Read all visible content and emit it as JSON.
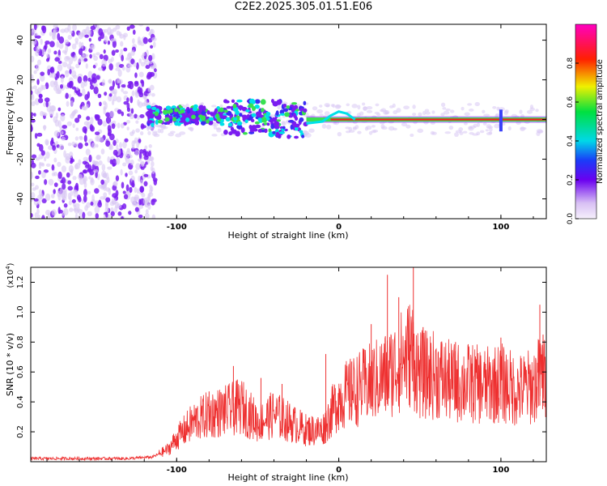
{
  "chart_data": [
    {
      "type": "heatmap",
      "title": "C2E2.2025.305.01.51.E06",
      "xlabel": "Height of straight line (km)",
      "ylabel": "Frequency (Hz)",
      "xlim": [
        -190,
        128
      ],
      "ylim": [
        -50,
        48
      ],
      "xticks": [
        -100,
        0,
        100
      ],
      "xtick_labels": [
        "-100",
        "0",
        "100"
      ],
      "yticks": [
        -40,
        -20,
        0,
        20,
        40
      ],
      "ytick_labels": [
        "-40",
        "-20",
        "0",
        "20",
        "40"
      ],
      "colorbar": {
        "label": "Normalized spectral amplitude",
        "range": [
          0,
          1
        ],
        "ticks": [
          0.0,
          0.2,
          0.4,
          0.6,
          0.8
        ],
        "tick_labels": [
          "0.0",
          "0.2",
          "0.4",
          "0.6",
          "0.8"
        ]
      },
      "regions": [
        {
          "name": "scattered noise",
          "x_range": [
            -190,
            -113
          ],
          "f_range": [
            -50,
            48
          ],
          "amplitude": 0.1
        },
        {
          "name": "broad band",
          "x_range": [
            -118,
            -20
          ],
          "f_range": [
            -12,
            16
          ],
          "amplitude": 0.3
        },
        {
          "name": "narrow line",
          "x_range": [
            -20,
            128
          ],
          "f_center": 0,
          "amplitude": 0.85
        }
      ],
      "colors": {
        "low": "#d8c8f4",
        "mid": "#7a1cf0",
        "cyan": "#00e0e8",
        "green": "#38e050",
        "red": "#ee2020"
      }
    },
    {
      "type": "line",
      "xlabel": "Height of straight line (km)",
      "ylabel": "SNR (10 * v/v)",
      "scale_label_prefix": "(x10",
      "scale_label_exp": "4",
      "scale_label_suffix": ")",
      "xlim": [
        -190,
        128
      ],
      "ylim": [
        0,
        1.3
      ],
      "xticks": [
        -100,
        0,
        100
      ],
      "xtick_labels": [
        "-100",
        "0",
        "100"
      ],
      "yticks": [
        0.2,
        0.4,
        0.6,
        0.8,
        1.0,
        1.2
      ],
      "ytick_labels": [
        "0.2",
        "0.4",
        "0.6",
        "0.8",
        "1.0",
        "1.2"
      ],
      "color": "#ee3030",
      "series": [
        {
          "name": "SNR",
          "x": [
            -190,
            -170,
            -150,
            -130,
            -115,
            -105,
            -100,
            -90,
            -80,
            -70,
            -60,
            -50,
            -40,
            -30,
            -20,
            -10,
            0,
            10,
            20,
            30,
            40,
            45,
            50,
            60,
            70,
            80,
            90,
            100,
            110,
            120,
            125,
            128
          ],
          "y": [
            0.02,
            0.02,
            0.02,
            0.02,
            0.03,
            0.08,
            0.15,
            0.25,
            0.3,
            0.32,
            0.35,
            0.25,
            0.3,
            0.25,
            0.2,
            0.2,
            0.4,
            0.45,
            0.5,
            0.55,
            0.65,
            0.7,
            0.55,
            0.55,
            0.5,
            0.5,
            0.48,
            0.5,
            0.45,
            0.48,
            0.55,
            0.5
          ],
          "peaks": [
            {
              "x": -80,
              "y": 0.47
            },
            {
              "x": -65,
              "y": 0.64
            },
            {
              "x": -48,
              "y": 0.56
            },
            {
              "x": -35,
              "y": 0.52
            },
            {
              "x": -8,
              "y": 0.72
            },
            {
              "x": 8,
              "y": 0.67
            },
            {
              "x": 20,
              "y": 0.92
            },
            {
              "x": 30,
              "y": 1.25
            },
            {
              "x": 37,
              "y": 1.1
            },
            {
              "x": 46,
              "y": 1.3
            },
            {
              "x": 52,
              "y": 0.9
            },
            {
              "x": 72,
              "y": 0.8
            },
            {
              "x": 100,
              "y": 0.83
            },
            {
              "x": 124,
              "y": 1.05
            },
            {
              "x": 126,
              "y": 0.85
            }
          ]
        }
      ]
    }
  ]
}
